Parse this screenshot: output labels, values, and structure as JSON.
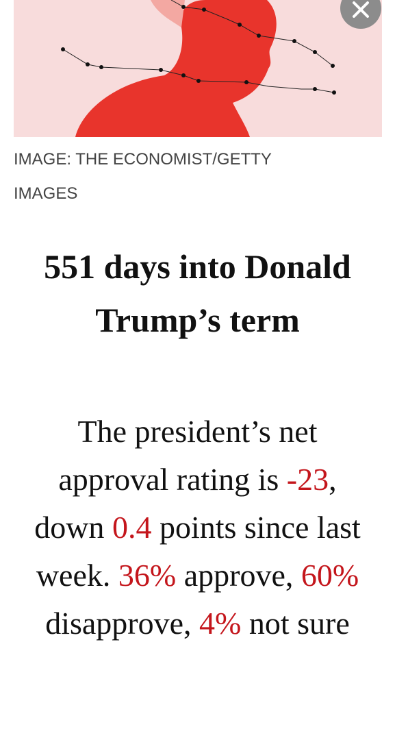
{
  "image_caption": "IMAGE: THE ECONOMIST/GETTY IMAGES",
  "headline": "551 days into Donald Trump’s term",
  "summary": {
    "emphasis_color": "#c4161c",
    "parts": [
      {
        "text": "The president’s net approval rating is ",
        "emphasis": false
      },
      {
        "text": "-23",
        "emphasis": true
      },
      {
        "text": ", down ",
        "emphasis": false
      },
      {
        "text": "0.4",
        "emphasis": true
      },
      {
        "text": " points since last week. ",
        "emphasis": false
      },
      {
        "text": "36%",
        "emphasis": true
      },
      {
        "text": " approve, ",
        "emphasis": false
      },
      {
        "text": "60%",
        "emphasis": true
      },
      {
        "text": " disapprove, ",
        "emphasis": false
      },
      {
        "text": "4%",
        "emphasis": true
      },
      {
        "text": " not sure",
        "emphasis": false
      }
    ]
  }
}
